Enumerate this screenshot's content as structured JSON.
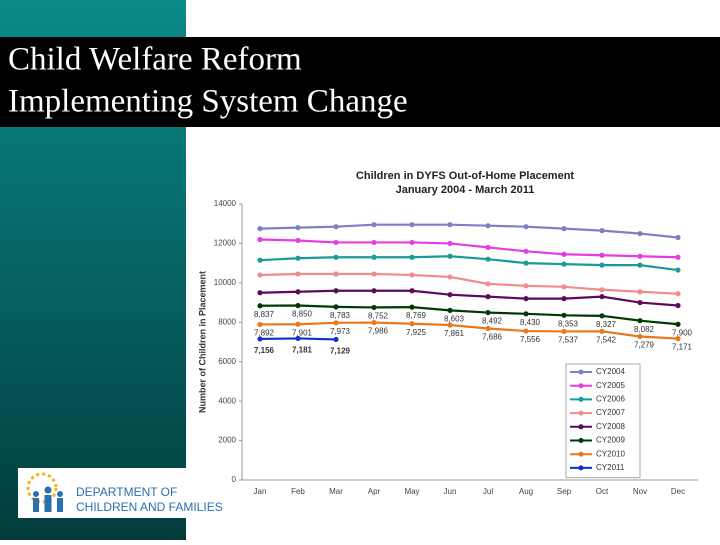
{
  "slide": {
    "title_lines": [
      "Child Welfare Reform",
      "Implementing System Change"
    ]
  },
  "logo": {
    "lines": [
      "DEPARTMENT OF",
      "CHILDREN AND FAMILIES"
    ]
  },
  "chart_data": {
    "type": "line",
    "title": "Children in DYFS Out-of-Home Placement",
    "subtitle": "January 2004 - March 2011",
    "y_label": "Number of Children in Placement",
    "categories": [
      "Jan",
      "Feb",
      "Mar",
      "Apr",
      "May",
      "Jun",
      "Jul",
      "Aug",
      "Sep",
      "Oct",
      "Nov",
      "Dec"
    ],
    "ylim": [
      0,
      14000
    ],
    "yticks": [
      0,
      2000,
      4000,
      6000,
      8000,
      10000,
      12000,
      14000
    ],
    "grid": false,
    "legend": "lower right",
    "series": [
      {
        "name": "CY2004",
        "color": "#7f7fc4",
        "values": [
          12750,
          12800,
          12850,
          12950,
          12950,
          12950,
          12900,
          12850,
          12750,
          12650,
          12500,
          12300
        ]
      },
      {
        "name": "CY2005",
        "color": "#e63ce6",
        "values": [
          12200,
          12150,
          12050,
          12050,
          12050,
          12000,
          11800,
          11600,
          11450,
          11400,
          11350,
          11300
        ]
      },
      {
        "name": "CY2006",
        "color": "#1a9a9a",
        "values": [
          11150,
          11250,
          11300,
          11300,
          11300,
          11350,
          11200,
          11000,
          10950,
          10900,
          10900,
          10650
        ]
      },
      {
        "name": "CY2007",
        "color": "#f08c8c",
        "values": [
          10400,
          10450,
          10450,
          10450,
          10400,
          10300,
          9950,
          9850,
          9800,
          9650,
          9550,
          9450
        ]
      },
      {
        "name": "CY2008",
        "color": "#5c0a5c",
        "values": [
          9500,
          9550,
          9600,
          9600,
          9600,
          9400,
          9300,
          9200,
          9200,
          9300,
          9000,
          8850
        ]
      },
      {
        "name": "CY2009",
        "color": "#003a00",
        "values": [
          8837,
          8850,
          8783,
          8752,
          8769,
          8603,
          8492,
          8430,
          8353,
          8327,
          8082,
          7900
        ],
        "value_labels": [
          "8,837",
          "8,850",
          "8,783",
          "8,752",
          "8,769",
          "8,603",
          "8,492",
          "8,430",
          "8,353",
          "8,327",
          "8,082",
          "7,900"
        ]
      },
      {
        "name": "CY2010",
        "color": "#e8781e",
        "values": [
          7892,
          7901,
          7973,
          7986,
          7925,
          7861,
          7686,
          7556,
          7537,
          7542,
          7279,
          7171
        ],
        "value_labels": [
          "7,892",
          "7,901",
          "7,973",
          "7,986",
          "7,925",
          "7,861",
          "7,686",
          "7,556",
          "7,537",
          "7,542",
          "7,279",
          "7,171"
        ]
      },
      {
        "name": "CY2011",
        "color": "#1030c8",
        "values": [
          7156,
          7181,
          7129,
          null,
          null,
          null,
          null,
          null,
          null,
          null,
          null,
          null
        ],
        "value_labels": [
          "7,156",
          "7,181",
          "7,129",
          null,
          null,
          null,
          null,
          null,
          null,
          null,
          null,
          null
        ]
      }
    ]
  }
}
